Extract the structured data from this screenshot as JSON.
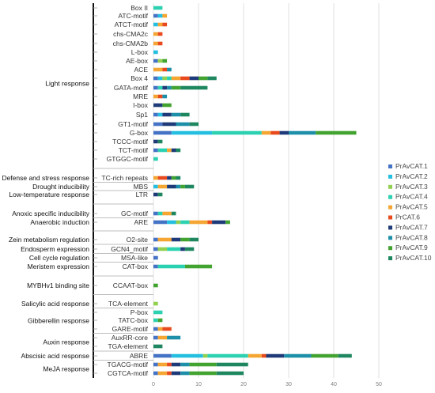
{
  "chart_data": {
    "type": "bar",
    "orientation": "horizontal",
    "stacked": true,
    "xlim": [
      0,
      50
    ],
    "x_ticks": [
      "0",
      "10",
      "20",
      "30",
      "40",
      "50"
    ],
    "grid": true,
    "legend_position": "right",
    "series_names": [
      "PrAvCAT.1",
      "PrAvCAT.2",
      "PrAvCAT.3",
      "PrAvCAT.4",
      "PrAvCAT.5",
      "PrCAT.6",
      "PrAvCAT.7",
      "PrAvCAT.8",
      "PrAvCAT.9",
      "PrAvCAT.10"
    ],
    "colors": [
      "#4472C4",
      "#23BEE0",
      "#92D050",
      "#2BD1B0",
      "#F4A532",
      "#E8491D",
      "#1F3A78",
      "#1E8FA8",
      "#43A331",
      "#1E8760"
    ],
    "elements": [
      {
        "name": "Box II",
        "values": [
          0,
          0,
          0,
          2,
          0,
          0,
          0,
          0,
          0,
          0
        ]
      },
      {
        "name": "ATC-motif",
        "values": [
          1,
          1,
          0,
          0,
          1,
          0,
          0,
          0,
          0,
          0
        ]
      },
      {
        "name": "ATCT-motif",
        "values": [
          0,
          1,
          0,
          0,
          1,
          1,
          0,
          0,
          0,
          0
        ]
      },
      {
        "name": "chs-CMA2c",
        "values": [
          0,
          0,
          0,
          0,
          1,
          1,
          0,
          0,
          0,
          0
        ]
      },
      {
        "name": "chs-CMA2b",
        "values": [
          0,
          0,
          0,
          0,
          1,
          1,
          0,
          0,
          0,
          0
        ]
      },
      {
        "name": "L-box",
        "values": [
          0,
          1,
          0,
          0,
          0,
          0,
          0,
          0,
          0,
          0
        ]
      },
      {
        "name": "AE-box",
        "values": [
          1,
          0,
          1,
          0,
          0,
          0,
          0,
          0,
          1,
          0
        ]
      },
      {
        "name": "ACE",
        "values": [
          0,
          0,
          0,
          0,
          2,
          1,
          0,
          1,
          0,
          0
        ]
      },
      {
        "name": "Box 4",
        "values": [
          1,
          1,
          1,
          1,
          2,
          2,
          2,
          0,
          2,
          2
        ]
      },
      {
        "name": "GATA-motif",
        "values": [
          1,
          0,
          0,
          1,
          0,
          0,
          1,
          1,
          2,
          6
        ]
      },
      {
        "name": "MRE",
        "values": [
          0,
          0,
          0,
          0,
          1,
          1,
          0,
          1,
          0,
          0
        ]
      },
      {
        "name": "I-box",
        "values": [
          0,
          0,
          0,
          0,
          0,
          0,
          2,
          0,
          2,
          0
        ]
      },
      {
        "name": "Sp1",
        "values": [
          1,
          1,
          0,
          0,
          0,
          0,
          2,
          2,
          0,
          2
        ]
      },
      {
        "name": "GT1-motif",
        "values": [
          2,
          0,
          0,
          0,
          0,
          0,
          3,
          3,
          0,
          2
        ]
      },
      {
        "name": "G-box",
        "values": [
          4,
          9,
          0,
          11,
          2,
          2,
          2,
          6,
          9,
          0
        ]
      },
      {
        "name": "TCCC-motif",
        "values": [
          0,
          0,
          0,
          0,
          0,
          0,
          1,
          0,
          0,
          1
        ]
      },
      {
        "name": "TCT-motif",
        "values": [
          1,
          0,
          0,
          2,
          1,
          0,
          1,
          0,
          0,
          1
        ]
      },
      {
        "name": "GTGGC-motif",
        "values": [
          0,
          0,
          0,
          1,
          0,
          0,
          0,
          0,
          0,
          0
        ]
      },
      {
        "name": "TC-rich repeats",
        "values": [
          0,
          0,
          0,
          0,
          1,
          2,
          1,
          0,
          1,
          1
        ]
      },
      {
        "name": "MBS",
        "values": [
          0,
          1,
          0,
          0,
          2,
          0,
          2,
          1,
          1,
          2
        ]
      },
      {
        "name": "LTR",
        "values": [
          0,
          0,
          0,
          0,
          0,
          0,
          1,
          0,
          0,
          1
        ]
      },
      {
        "name": "GC-motif",
        "values": [
          1,
          0,
          0,
          1,
          2,
          0,
          0,
          0,
          0,
          1
        ]
      },
      {
        "name": "ARE",
        "values": [
          3,
          2,
          1,
          2,
          4,
          1,
          3,
          0,
          1,
          0
        ]
      },
      {
        "name": "O2-site",
        "values": [
          1,
          0,
          0,
          0,
          3,
          0,
          2,
          0,
          2,
          2
        ]
      },
      {
        "name": "GCN4_motif",
        "values": [
          1,
          0,
          2,
          3,
          0,
          0,
          1,
          0,
          0,
          2
        ]
      },
      {
        "name": "MSA-like",
        "values": [
          1,
          0,
          0,
          0,
          0,
          0,
          0,
          0,
          0,
          0
        ]
      },
      {
        "name": "CAT-box",
        "values": [
          1,
          0,
          0,
          6,
          0,
          0,
          0,
          0,
          6,
          0
        ]
      },
      {
        "name": "CCAAT-box",
        "values": [
          0,
          0,
          0,
          0,
          0,
          0,
          0,
          0,
          1,
          0
        ]
      },
      {
        "name": "TCA-element",
        "values": [
          0,
          0,
          1,
          0,
          0,
          0,
          0,
          0,
          0,
          0
        ]
      },
      {
        "name": "P-box",
        "values": [
          0,
          0,
          0,
          2,
          0,
          0,
          0,
          0,
          0,
          0
        ]
      },
      {
        "name": "TATC-box",
        "values": [
          0,
          0,
          0,
          1,
          0,
          0,
          0,
          0,
          1,
          0
        ]
      },
      {
        "name": "GARE-motif",
        "values": [
          1,
          0,
          0,
          0,
          1,
          2,
          0,
          0,
          0,
          0
        ]
      },
      {
        "name": "AuxRR-core",
        "values": [
          1,
          0,
          0,
          0,
          2,
          0,
          0,
          3,
          0,
          0
        ]
      },
      {
        "name": "TGA-element",
        "values": [
          0,
          0,
          0,
          0,
          0,
          0,
          0,
          0,
          0,
          2
        ]
      },
      {
        "name": "ABRE",
        "values": [
          4,
          7,
          1,
          9,
          3,
          1,
          4,
          6,
          6,
          3
        ]
      },
      {
        "name": "TGACG-motif",
        "values": [
          1,
          0,
          0,
          0,
          2,
          1,
          2,
          2,
          6,
          7
        ]
      },
      {
        "name": "CGTCA-motif",
        "values": [
          1,
          0,
          0,
          0,
          2,
          1,
          2,
          2,
          6,
          6
        ]
      }
    ],
    "groups": [
      {
        "label": "Light response",
        "from": 0,
        "to": 17
      },
      {
        "label": "Defense and stress response",
        "from": 18,
        "to": 18
      },
      {
        "label": "Drought inducibility",
        "from": 19,
        "to": 19
      },
      {
        "label": "Low-temperature response",
        "from": 20,
        "to": 20
      },
      {
        "label": "Anoxic specific inducibility",
        "from": 21,
        "to": 21
      },
      {
        "label": "Anaerobic induction",
        "from": 22,
        "to": 22
      },
      {
        "label": "Zein metabolism regulation",
        "from": 23,
        "to": 23
      },
      {
        "label": "Endosperm expression",
        "from": 24,
        "to": 24
      },
      {
        "label": "Cell cycle regulation",
        "from": 25,
        "to": 25
      },
      {
        "label": "Meristem expression",
        "from": 26,
        "to": 26
      },
      {
        "label": "MYBHv1 binding site",
        "from": 27,
        "to": 27
      },
      {
        "label": "Salicylic acid response",
        "from": 28,
        "to": 28
      },
      {
        "label": "Gibberellin response",
        "from": 29,
        "to": 31
      },
      {
        "label": "Auxin response",
        "from": 32,
        "to": 33
      },
      {
        "label": "Abscisic acid response",
        "from": 34,
        "to": 34
      },
      {
        "label": "MeJA response",
        "from": 35,
        "to": 36
      }
    ]
  }
}
